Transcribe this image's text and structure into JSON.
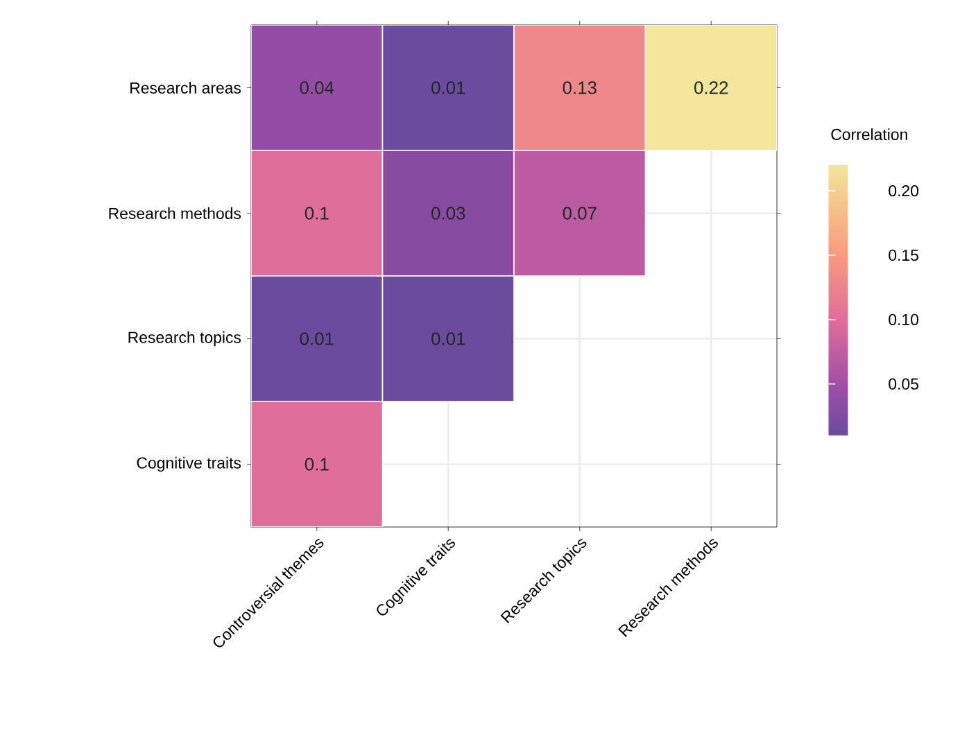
{
  "chart_data": {
    "type": "heatmap",
    "clabel": "Correlation",
    "categories": [
      "Controversial themes",
      "Cognitive traits",
      "Research topics",
      "Research methods"
    ],
    "y_categories": [
      "Research areas",
      "Research methods",
      "Research topics",
      "Cognitive traits"
    ],
    "cells": [
      [
        0.04,
        0.01,
        0.13,
        0.22
      ],
      [
        0.1,
        0.03,
        0.07,
        null
      ],
      [
        0.01,
        0.01,
        null,
        null
      ],
      [
        0.1,
        null,
        null,
        null
      ]
    ],
    "data_labels": true,
    "grid": true,
    "clim": [
      0.01,
      0.22
    ],
    "cticks": [
      0.05,
      {
        "value": 0.1,
        "label": "0.10"
      },
      0.15,
      {
        "value": 0.2,
        "label": "0.20"
      }
    ]
  }
}
